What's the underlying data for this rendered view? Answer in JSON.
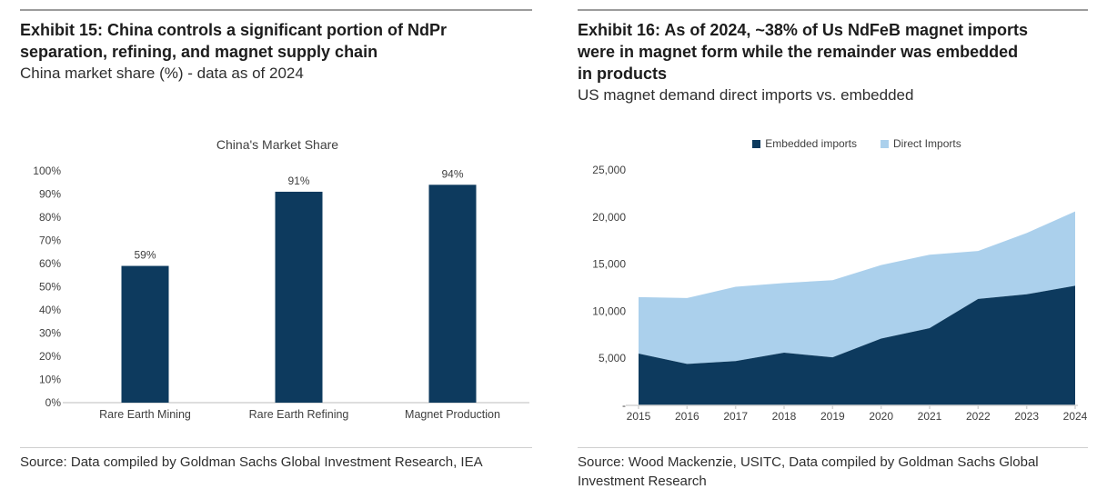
{
  "left": {
    "title_lines": [
      "Exhibit 15: China controls a significant portion of NdPr",
      "separation, refining, and magnet supply chain"
    ],
    "subtitle": "China market share (%) - data as of 2024",
    "source_lines": [
      "Source: Data compiled by Goldman Sachs Global Investment Research, IEA"
    ]
  },
  "right": {
    "title_lines": [
      "Exhibit 16: As of 2024, ~38% of Us NdFeB magnet imports",
      "were in magnet form while the remainder was embedded",
      "in products"
    ],
    "subtitle": "US magnet demand direct imports vs. embedded",
    "source_lines": [
      "Source: Wood Mackenzie, USITC, Data compiled by Goldman Sachs Global",
      "Investment Research"
    ]
  },
  "chart_data": [
    {
      "type": "bar",
      "title": "China's Market Share",
      "categories": [
        "Rare Earth Mining",
        "Rare Earth Refining",
        "Magnet Production"
      ],
      "values": [
        59,
        91,
        94
      ],
      "value_label_suffix": "%",
      "xlabel": "",
      "ylabel": "",
      "ylim": [
        0,
        100
      ],
      "ytick_step": 10,
      "ytick_labels": [
        "0%",
        "10%",
        "20%",
        "30%",
        "40%",
        "50%",
        "60%",
        "70%",
        "80%",
        "90%",
        "100%"
      ],
      "bar_color": "#0d3a5e",
      "grid": false,
      "legend_position": "none"
    },
    {
      "type": "area",
      "stacked": true,
      "x": [
        "2015",
        "2016",
        "2017",
        "2018",
        "2019",
        "2020",
        "2021",
        "2022",
        "2023",
        "2024"
      ],
      "series": [
        {
          "name": "Embedded imports",
          "color": "#0d3a5e",
          "values": [
            5500,
            4400,
            4700,
            5600,
            5100,
            7100,
            8200,
            11300,
            11800,
            12700
          ]
        },
        {
          "name": "Direct Imports",
          "color": "#abd0ec",
          "values": [
            6000,
            7000,
            7900,
            7400,
            8200,
            7800,
            7800,
            5100,
            6500,
            7900
          ]
        }
      ],
      "totals": [
        11500,
        11400,
        12600,
        13000,
        13300,
        14900,
        16000,
        16400,
        18300,
        20600
      ],
      "xlabel": "",
      "ylabel": "",
      "ylim": [
        0,
        25000
      ],
      "ytick_step": 5000,
      "ytick_labels": [
        "-",
        "5,000",
        "10,000",
        "15,000",
        "20,000",
        "25,000"
      ],
      "grid": false,
      "legend_position": "top"
    }
  ],
  "colors": {
    "navy": "#0d3a5e",
    "light_blue": "#abd0ec",
    "top_rule": "#9c9c9c",
    "bottom_rule": "#cfcfcf",
    "axis_line": "#d4d4d4"
  }
}
